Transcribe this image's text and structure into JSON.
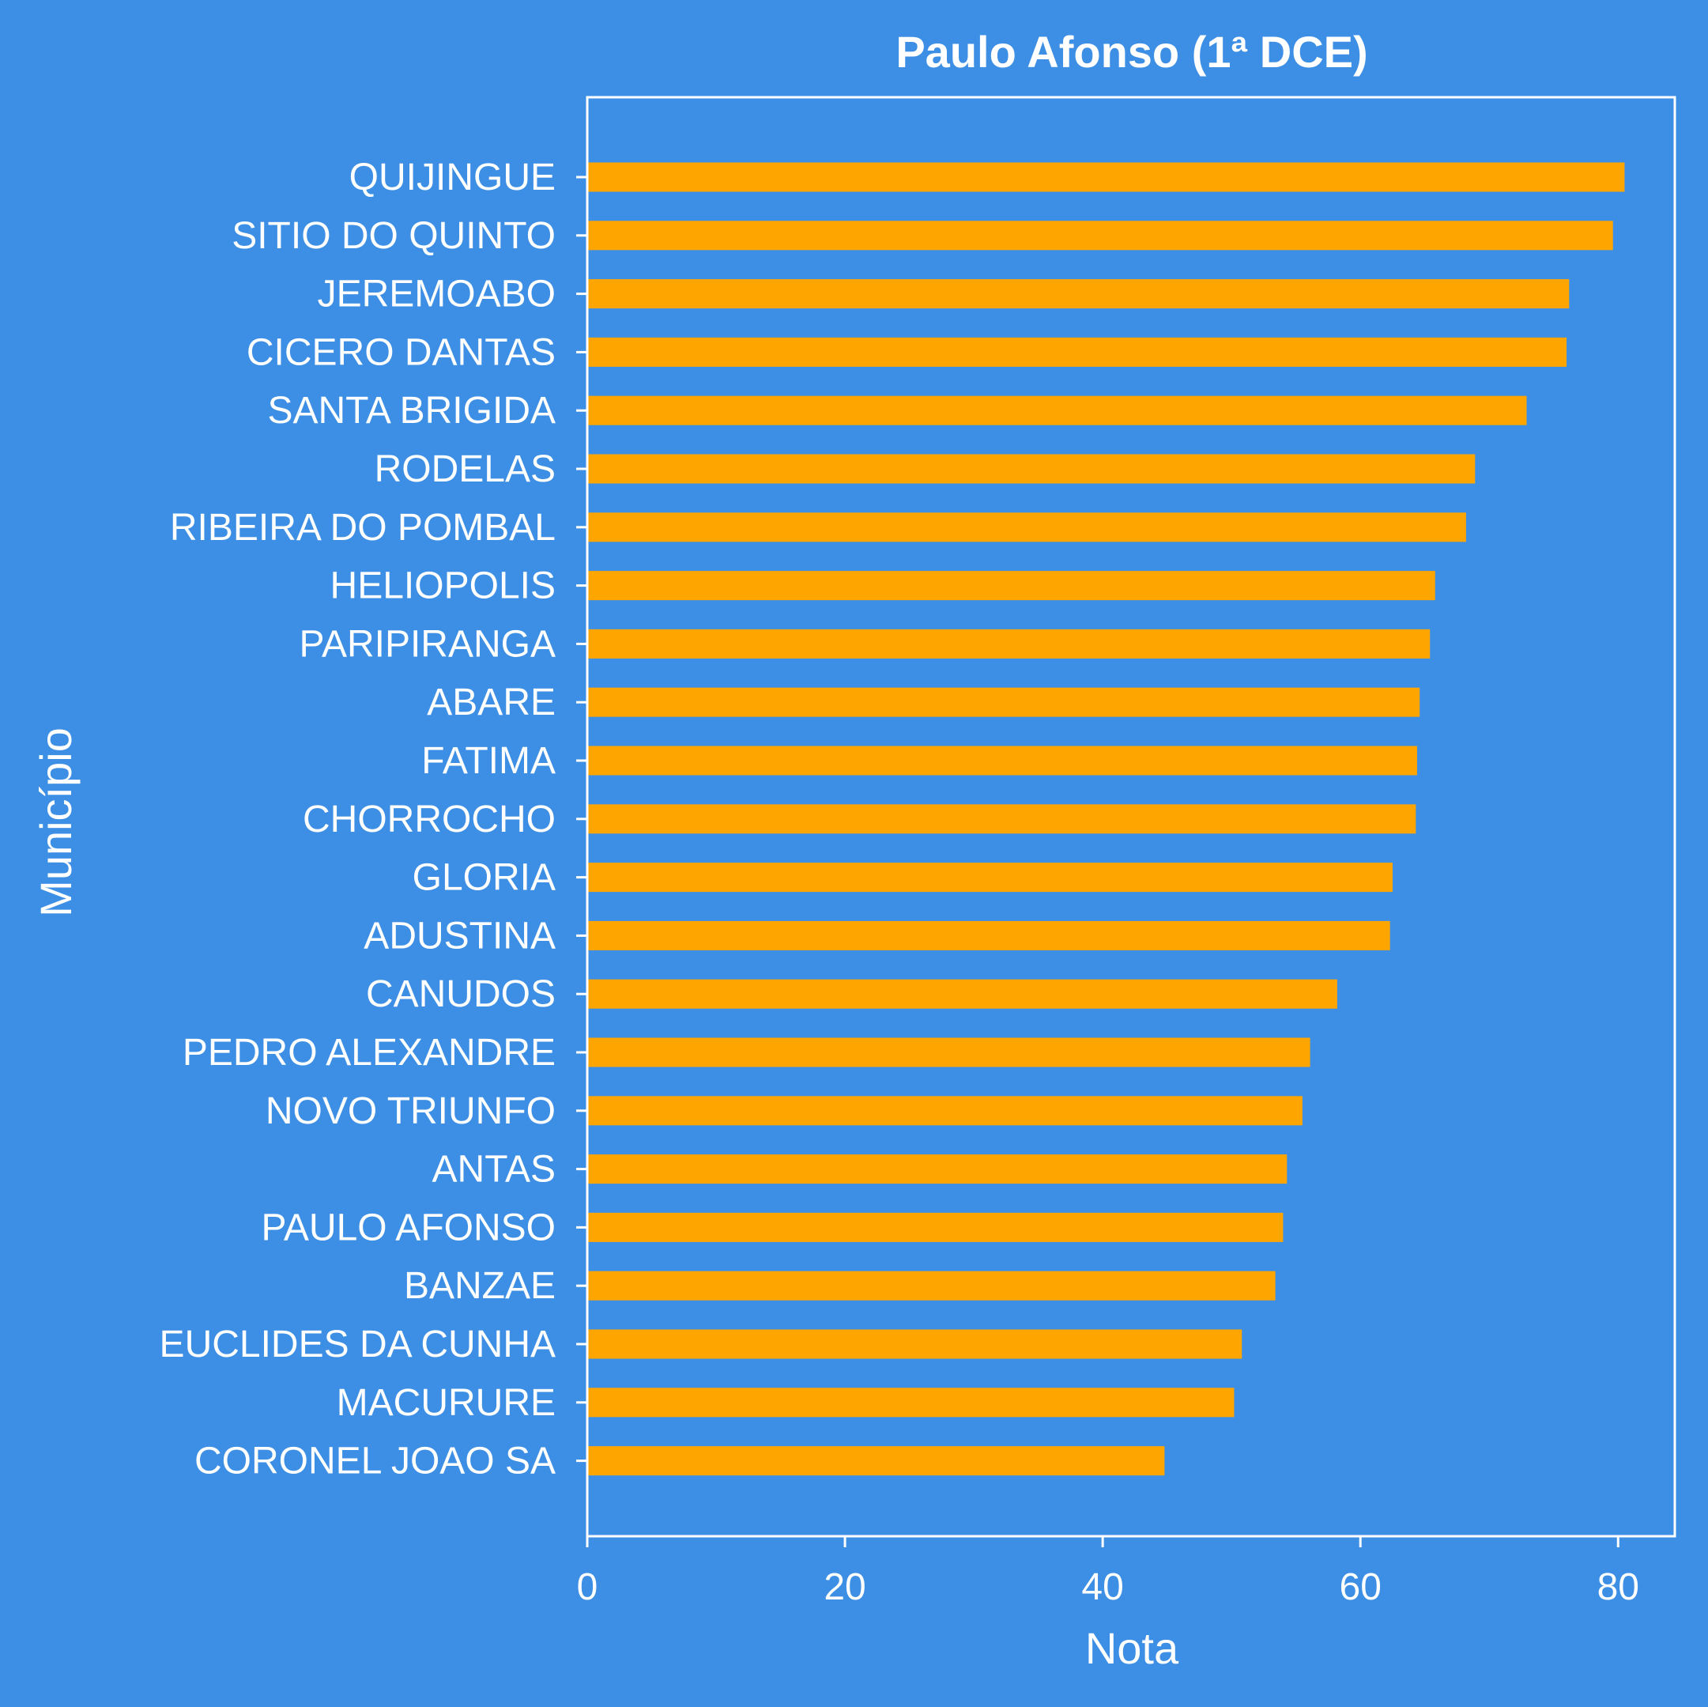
{
  "chart_data": {
    "type": "bar",
    "orientation": "horizontal",
    "title": "Paulo Afonso (1ª DCE)",
    "xlabel": "Nota",
    "ylabel": "Município",
    "xlim": [
      0,
      84.4
    ],
    "xticks": [
      0,
      20,
      40,
      60,
      80
    ],
    "grid": false,
    "bar_color": "#ffa500",
    "background_color": "#3d8fe5",
    "categories": [
      "QUIJINGUE",
      "SITIO DO QUINTO",
      "JEREMOABO",
      "CICERO DANTAS",
      "SANTA BRIGIDA",
      "RODELAS",
      "RIBEIRA DO POMBAL",
      "HELIOPOLIS",
      "PARIPIRANGA",
      "ABARE",
      "FATIMA",
      "CHORROCHO",
      "GLORIA",
      "ADUSTINA",
      "CANUDOS",
      "PEDRO ALEXANDRE",
      "NOVO TRIUNFO",
      "ANTAS",
      "PAULO AFONSO",
      "BANZAE",
      "EUCLIDES DA CUNHA",
      "MACURURE",
      "CORONEL JOAO SA"
    ],
    "values": [
      80.5,
      79.6,
      76.2,
      76.0,
      72.9,
      68.9,
      68.2,
      65.8,
      65.4,
      64.6,
      64.4,
      64.3,
      62.5,
      62.3,
      58.2,
      56.1,
      55.5,
      54.3,
      54.0,
      53.4,
      50.8,
      50.2,
      44.8
    ]
  }
}
